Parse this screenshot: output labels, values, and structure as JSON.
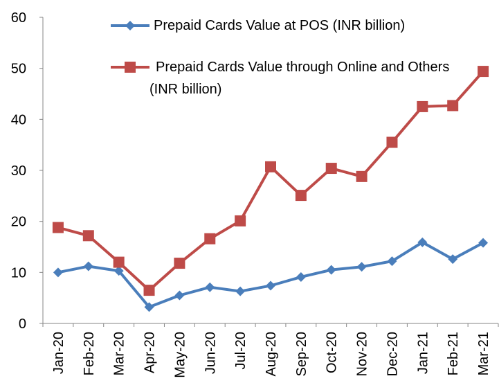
{
  "chart_data": {
    "type": "line",
    "categories": [
      "Jan-20",
      "Feb-20",
      "Mar-20",
      "Apr-20",
      "May-20",
      "Jun-20",
      "Jul-20",
      "Aug-20",
      "Sep-20",
      "Oct-20",
      "Nov-20",
      "Dec-20",
      "Jan-21",
      "Feb-21",
      "Mar-21"
    ],
    "series": [
      {
        "name": "Prepaid Cards Value at POS (INR billion)",
        "color": "#4a7ebb",
        "marker": "diamond",
        "values": [
          10,
          11.2,
          10.3,
          3.2,
          5.5,
          7.1,
          6.3,
          7.4,
          9.1,
          10.5,
          11.1,
          12.2,
          15.9,
          12.6,
          15.8
        ]
      },
      {
        "name": "Prepaid Cards Value through Online and Others (INR billion)",
        "color": "#be4b48",
        "marker": "square",
        "values": [
          18.8,
          17.2,
          12.0,
          6.5,
          11.8,
          16.6,
          20.1,
          30.7,
          25.1,
          30.4,
          28.8,
          35.5,
          42.5,
          42.7,
          49.4
        ]
      }
    ],
    "ylim": [
      0,
      60
    ],
    "yticks": [
      0,
      10,
      20,
      30,
      40,
      50,
      60
    ],
    "grid": false,
    "legend": "top"
  }
}
